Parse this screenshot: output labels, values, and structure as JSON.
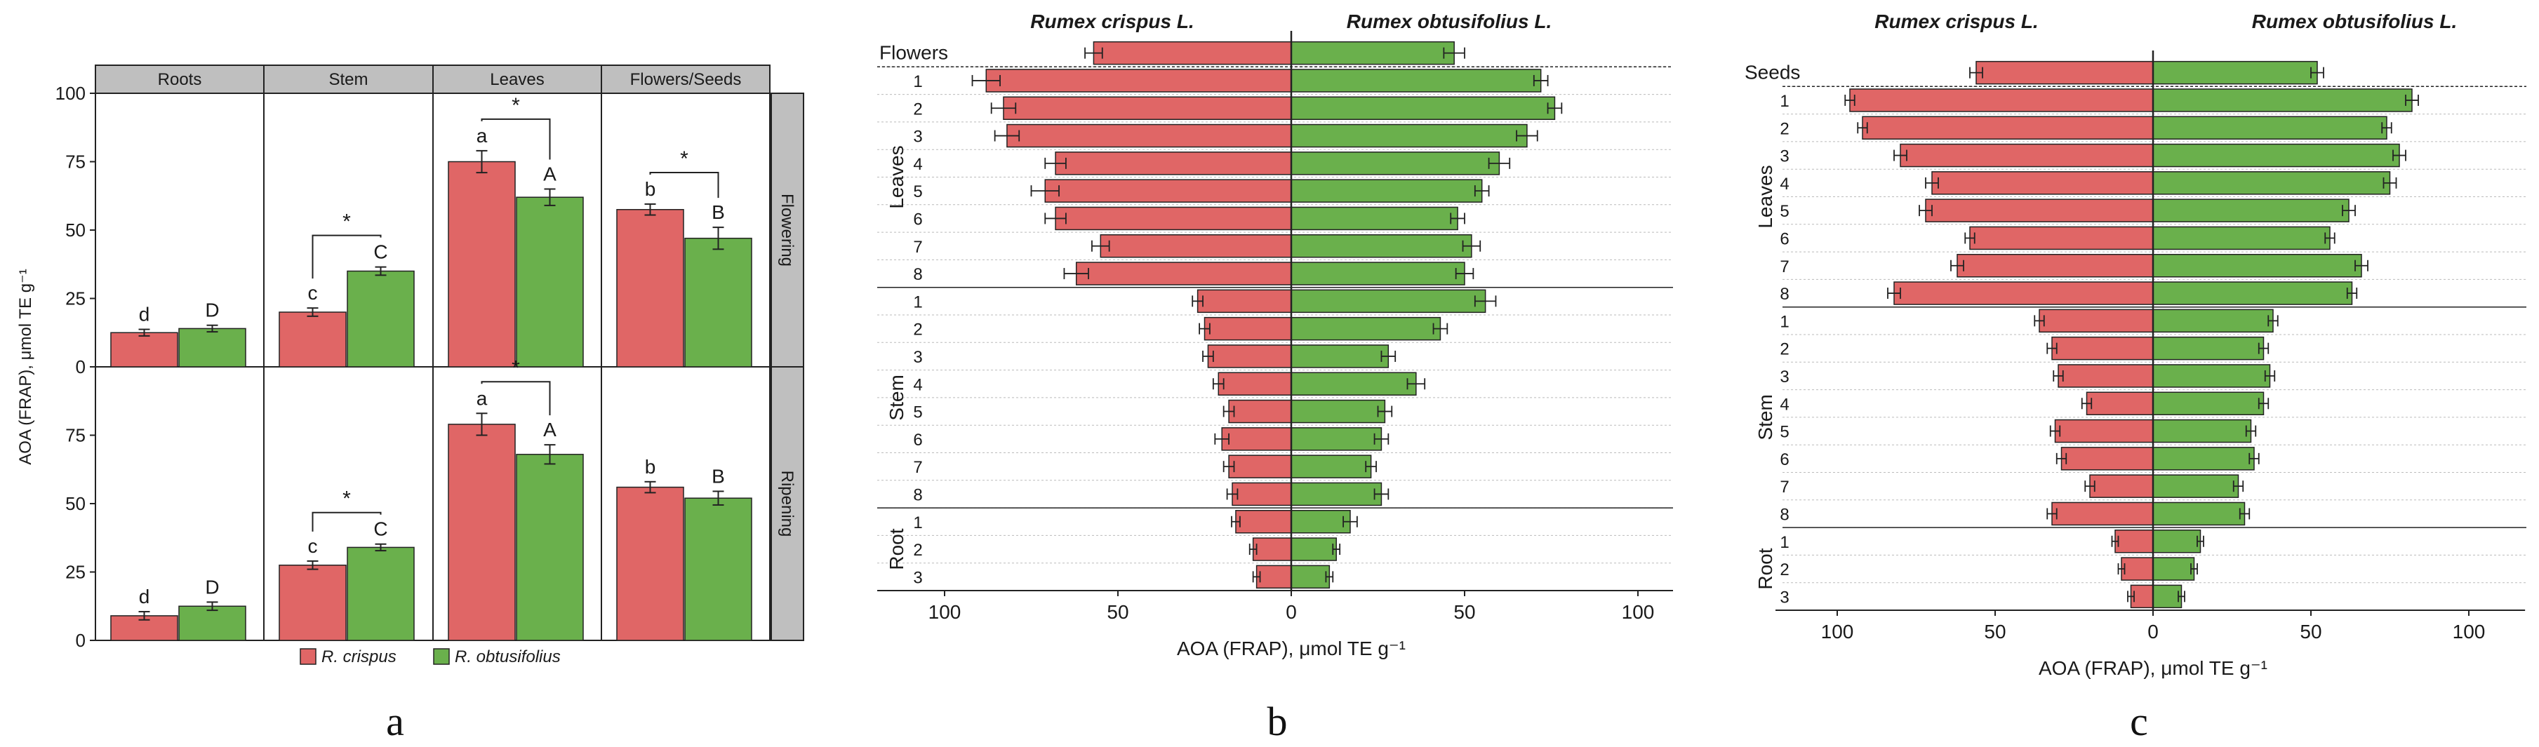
{
  "colors": {
    "crispus": "#e06666",
    "obtusifolius": "#6ab04c",
    "header_bg": "#bfbfbf",
    "axis": "#222222"
  },
  "panel_labels": {
    "a": "a",
    "b": "b",
    "c": "c"
  },
  "chart_data": [
    {
      "id": "a",
      "type": "bar",
      "ylabel": "AOA (FRAP), μmol TE g⁻¹",
      "ylim": [
        0,
        100
      ],
      "yticks": [
        "0",
        "25",
        "50",
        "75",
        "100"
      ],
      "columns": [
        "Roots",
        "Stem",
        "Leaves",
        "Flowers/Seeds"
      ],
      "rows": [
        "Flowering",
        "Ripening"
      ],
      "legend": [
        "R. crispus",
        "R. obtusifolius"
      ],
      "series_names": [
        "R. crispus",
        "R. obtusifolius"
      ],
      "cells": [
        {
          "row": 0,
          "col": 0,
          "values": [
            12.5,
            14
          ],
          "errors": [
            1.2,
            1.2
          ],
          "letters": [
            "d",
            "D"
          ],
          "star": ""
        },
        {
          "row": 0,
          "col": 1,
          "values": [
            20,
            35
          ],
          "errors": [
            1.5,
            1.5
          ],
          "letters": [
            "c",
            "C"
          ],
          "star": "*"
        },
        {
          "row": 0,
          "col": 2,
          "values": [
            75,
            62
          ],
          "errors": [
            4,
            3
          ],
          "letters": [
            "a",
            "A"
          ],
          "star": "*"
        },
        {
          "row": 0,
          "col": 3,
          "values": [
            57.5,
            47
          ],
          "errors": [
            2,
            4
          ],
          "letters": [
            "b",
            "B"
          ],
          "star": "*"
        },
        {
          "row": 1,
          "col": 0,
          "values": [
            9,
            12.5
          ],
          "errors": [
            1.5,
            1.5
          ],
          "letters": [
            "d",
            "D"
          ],
          "star": ""
        },
        {
          "row": 1,
          "col": 1,
          "values": [
            27.5,
            34
          ],
          "errors": [
            1.5,
            1.2
          ],
          "letters": [
            "c",
            "C"
          ],
          "star": "*"
        },
        {
          "row": 1,
          "col": 2,
          "values": [
            79,
            68
          ],
          "errors": [
            4,
            3.5
          ],
          "letters": [
            "a",
            "A"
          ],
          "star": "*"
        },
        {
          "row": 1,
          "col": 3,
          "values": [
            56,
            52
          ],
          "errors": [
            2,
            2.5
          ],
          "letters": [
            "b",
            "B"
          ],
          "star": ""
        }
      ]
    },
    {
      "id": "b",
      "type": "bar",
      "orientation": "horizontal-diverging",
      "title_left": "Rumex crispus L.",
      "title_right": "Rumex obtusifolius L.",
      "xlabel": "AOA (FRAP), μmol TE g⁻¹",
      "xlim": [
        -110,
        110
      ],
      "xticks": [
        "100",
        "50",
        "0",
        "50",
        "100"
      ],
      "groups": [
        {
          "name": "Flowers",
          "labels": [
            ""
          ],
          "crispus": [
            57
          ],
          "obtusifolius": [
            47
          ],
          "err_c": [
            2.5
          ],
          "err_o": [
            3
          ]
        },
        {
          "name": "Leaves",
          "labels": [
            "1",
            "2",
            "3",
            "4",
            "5",
            "6",
            "7",
            "8"
          ],
          "crispus": [
            88,
            83,
            82,
            68,
            71,
            68,
            55,
            62
          ],
          "obtusifolius": [
            72,
            76,
            68,
            60,
            55,
            48,
            52,
            50
          ],
          "err_c": [
            4,
            3.5,
            3.5,
            3,
            4,
            3,
            2.5,
            3.5
          ],
          "err_o": [
            2,
            2,
            3,
            3,
            2,
            2,
            2.5,
            2.5
          ]
        },
        {
          "name": "Stem",
          "labels": [
            "1",
            "2",
            "3",
            "4",
            "5",
            "6",
            "7",
            "8"
          ],
          "crispus": [
            27,
            25,
            24,
            21,
            18,
            20,
            18,
            17
          ],
          "obtusifolius": [
            56,
            43,
            28,
            36,
            27,
            26,
            23,
            26
          ],
          "err_c": [
            1.5,
            1.5,
            1.5,
            1.5,
            1.5,
            2,
            1.5,
            1.5
          ],
          "err_o": [
            3,
            2,
            2,
            2.5,
            2,
            2,
            1.5,
            2
          ]
        },
        {
          "name": "Root",
          "labels": [
            "1",
            "2",
            "3"
          ],
          "crispus": [
            16,
            11,
            10
          ],
          "obtusifolius": [
            17,
            13,
            11
          ],
          "err_c": [
            1.2,
            1,
            1
          ],
          "err_o": [
            2,
            1,
            1
          ]
        }
      ]
    },
    {
      "id": "c",
      "type": "bar",
      "orientation": "horizontal-diverging",
      "title_left": "Rumex crispus L.",
      "title_right": "Rumex obtusifolius L.",
      "xlabel": "AOA (FRAP), μmol TE g⁻¹",
      "xlim": [
        -120,
        120
      ],
      "xticks": [
        "100",
        "50",
        "0",
        "50",
        "100"
      ],
      "groups": [
        {
          "name": "Seeds",
          "labels": [
            ""
          ],
          "crispus": [
            56
          ],
          "obtusifolius": [
            52
          ],
          "err_c": [
            2
          ],
          "err_o": [
            2
          ]
        },
        {
          "name": "Leaves",
          "labels": [
            "1",
            "2",
            "3",
            "4",
            "5",
            "6",
            "7",
            "8"
          ],
          "crispus": [
            96,
            92,
            80,
            70,
            72,
            58,
            62,
            82
          ],
          "obtusifolius": [
            82,
            74,
            78,
            75,
            62,
            56,
            66,
            63
          ],
          "err_c": [
            1.5,
            1.5,
            2,
            2,
            2,
            1.5,
            2,
            2
          ],
          "err_o": [
            2,
            1.5,
            2,
            2,
            2,
            1.5,
            2,
            1.5
          ]
        },
        {
          "name": "Stem",
          "labels": [
            "1",
            "2",
            "3",
            "4",
            "5",
            "6",
            "7",
            "8"
          ],
          "crispus": [
            36,
            32,
            30,
            21,
            31,
            29,
            20,
            32
          ],
          "obtusifolius": [
            38,
            35,
            37,
            35,
            31,
            32,
            27,
            29
          ],
          "err_c": [
            1.5,
            1.5,
            1.5,
            1.5,
            1.5,
            1.5,
            1.5,
            1.5
          ],
          "err_o": [
            1.5,
            1.5,
            1.5,
            1.5,
            1.5,
            1.5,
            1.5,
            1.5
          ]
        },
        {
          "name": "Root",
          "labels": [
            "1",
            "2",
            "3"
          ],
          "crispus": [
            12,
            10,
            7
          ],
          "obtusifolius": [
            15,
            13,
            9
          ],
          "err_c": [
            1,
            1,
            1
          ],
          "err_o": [
            1,
            1,
            1
          ]
        }
      ]
    }
  ]
}
